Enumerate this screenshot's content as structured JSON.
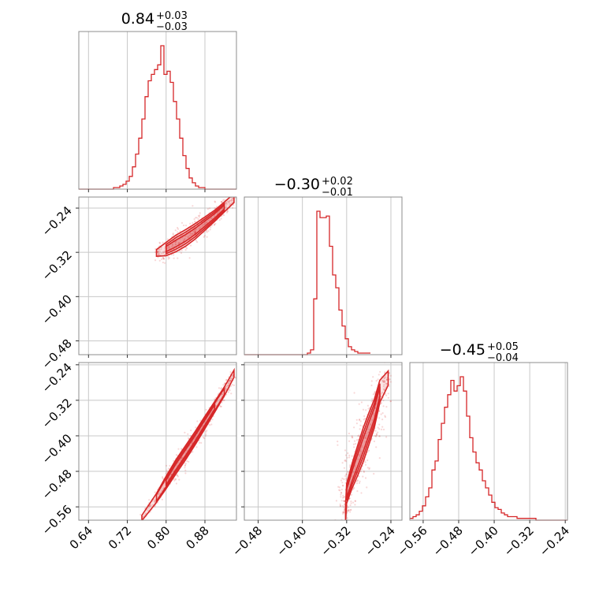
{
  "colors": {
    "series": "#d62728",
    "grid": "#c8c8c8",
    "frame": "#8c8c8c",
    "text": "#000000"
  },
  "chart_data": {
    "type": "corner",
    "parameters": [
      {
        "title": {
          "main": "0.84",
          "sup": "+0.03",
          "sub": "−0.03"
        },
        "range": [
          0.62,
          0.945
        ],
        "ticks": [
          0.64,
          0.72,
          0.8,
          0.88
        ],
        "tick_labels": [
          "0.64",
          "0.72",
          "0.80",
          "0.88"
        ]
      },
      {
        "title": {
          "main": "−0.30",
          "sup": "+0.02",
          "sub": "−0.01"
        },
        "range": [
          -0.505,
          -0.22
        ],
        "ticks": [
          -0.48,
          -0.4,
          -0.32,
          -0.24
        ],
        "tick_labels": [
          "−0.48",
          "−0.40",
          "−0.32",
          "−0.24"
        ]
      },
      {
        "title": {
          "main": "−0.45",
          "sup": "+0.05",
          "sub": "−0.04"
        },
        "range": [
          -0.59,
          -0.235
        ],
        "ticks": [
          -0.56,
          -0.48,
          -0.4,
          -0.32,
          -0.24
        ],
        "tick_labels": [
          "−0.56",
          "−0.48",
          "−0.40",
          "−0.32",
          "−0.24"
        ]
      }
    ],
    "row_ticks": {
      "p1": {
        "ticks": [
          -0.24,
          -0.32,
          -0.4,
          -0.48
        ],
        "labels": [
          "−0.24",
          "−0.32",
          "−0.40",
          "−0.48"
        ]
      },
      "p2": {
        "ticks": [
          -0.24,
          -0.32,
          -0.4,
          -0.48,
          -0.56
        ],
        "labels": [
          "−0.24",
          "−0.32",
          "−0.40",
          "−0.48",
          "−0.56"
        ]
      }
    },
    "histograms": [
      {
        "x_start": 0.62,
        "x_step": 0.0065,
        "counts": [
          0,
          0,
          0,
          0,
          0,
          0,
          0,
          0,
          0,
          0,
          0,
          1,
          1,
          2,
          3,
          5,
          8,
          14,
          22,
          32,
          44,
          58,
          68,
          72,
          75,
          78,
          90,
          72,
          74,
          67,
          55,
          44,
          32,
          21,
          13,
          7,
          4,
          2,
          1,
          1,
          0,
          0,
          0,
          0,
          0,
          0,
          0,
          0,
          0,
          0
        ]
      },
      {
        "x_start": -0.505,
        "x_step": 0.0057,
        "counts": [
          0,
          0,
          0,
          0,
          0,
          0,
          0,
          0,
          0,
          0,
          0,
          0,
          0,
          0,
          0,
          0,
          0,
          0,
          0,
          0,
          1,
          3,
          35,
          90,
          86,
          86,
          87,
          68,
          50,
          42,
          28,
          18,
          10,
          5,
          3,
          2,
          1,
          1,
          1,
          1
        ]
      },
      {
        "x_start": -0.59,
        "x_step": 0.0071,
        "counts": [
          1,
          2,
          3,
          5,
          8,
          13,
          18,
          28,
          33,
          45,
          54,
          63,
          70,
          78,
          72,
          75,
          80,
          72,
          58,
          46,
          38,
          32,
          28,
          22,
          18,
          14,
          10,
          7,
          6,
          4,
          3,
          2,
          2,
          2,
          1,
          1,
          1,
          1,
          1,
          1,
          0,
          0,
          0,
          0,
          0,
          0,
          0,
          0,
          0,
          0
        ]
      }
    ],
    "correlations": [
      {
        "row": 1,
        "col": 0,
        "points": [
          [
            0.78,
            -0.321
          ],
          [
            0.8,
            -0.314
          ],
          [
            0.82,
            -0.304
          ],
          [
            0.84,
            -0.294
          ],
          [
            0.86,
            -0.282
          ],
          [
            0.88,
            -0.268
          ],
          [
            0.9,
            -0.254
          ],
          [
            0.92,
            -0.238
          ],
          [
            0.94,
            -0.222
          ]
        ],
        "width": [
          0.006,
          0.012,
          0.015,
          0.015,
          0.014,
          0.012,
          0.01,
          0.009,
          0.008
        ]
      },
      {
        "row": 2,
        "col": 0,
        "points": [
          [
            0.75,
            -0.585
          ],
          [
            0.78,
            -0.54
          ],
          [
            0.8,
            -0.505
          ],
          [
            0.82,
            -0.47
          ],
          [
            0.84,
            -0.438
          ],
          [
            0.86,
            -0.405
          ],
          [
            0.88,
            -0.37
          ],
          [
            0.9,
            -0.335
          ],
          [
            0.92,
            -0.3
          ],
          [
            0.94,
            -0.26
          ]
        ],
        "width": [
          0.006,
          0.01,
          0.014,
          0.016,
          0.016,
          0.015,
          0.014,
          0.012,
          0.01,
          0.008
        ]
      },
      {
        "row": 2,
        "col": 1,
        "points": [
          [
            -0.322,
            -0.575
          ],
          [
            -0.32,
            -0.53
          ],
          [
            -0.31,
            -0.49
          ],
          [
            -0.3,
            -0.455
          ],
          [
            -0.29,
            -0.42
          ],
          [
            -0.28,
            -0.385
          ],
          [
            -0.27,
            -0.35
          ],
          [
            -0.26,
            -0.3
          ],
          [
            -0.245,
            -0.27
          ]
        ],
        "width": [
          0.018,
          0.022,
          0.028,
          0.034,
          0.038,
          0.036,
          0.032,
          0.025,
          0.016
        ]
      }
    ]
  }
}
